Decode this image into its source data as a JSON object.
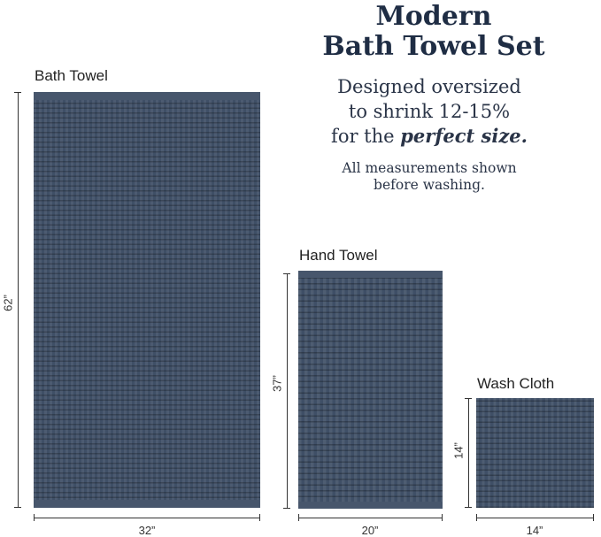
{
  "title": {
    "line1": "Modern",
    "line2": "Bath Towel Set"
  },
  "subtitle": {
    "line1": "Designed oversized",
    "line2": "to shrink 12-15%",
    "line3_prefix": "for the ",
    "line3_emphasis": "perfect size."
  },
  "note": {
    "line1": "All measurements shown",
    "line2": "before washing."
  },
  "colors": {
    "towel": "#3f4f66",
    "title": "#1f2d44"
  },
  "items": {
    "bath": {
      "label": "Bath Towel",
      "width": "32”",
      "height": "62”"
    },
    "hand": {
      "label": "Hand Towel",
      "width": "20”",
      "height": "37”"
    },
    "wash": {
      "label": "Wash Cloth",
      "width": "14”",
      "height": "14”"
    }
  }
}
